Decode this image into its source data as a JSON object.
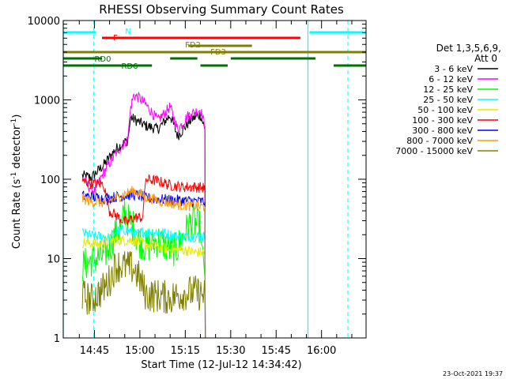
{
  "chart_data": {
    "type": "line",
    "title": "RHESSI Observing Summary Count Rates",
    "xlabel": "Start Time (12-Jul-12 14:34:42)",
    "ylabel": "Count Rate (s⁻¹ detector⁻¹)",
    "ylabel_parts": {
      "main": "Count Rate (s",
      "sup1": "-1",
      "mid": " detector",
      "sup2": "-1",
      "end": ")"
    },
    "y_scale": "log",
    "ylim": [
      1,
      10000
    ],
    "y_ticks": [
      "1",
      "10",
      "100",
      "1000",
      "10000"
    ],
    "x_range_minutes": [
      14.0,
      66.0
    ],
    "x_ticks": [
      {
        "label": "14:45",
        "min": 45
      },
      {
        "label": "15:00",
        "min": 60
      },
      {
        "label": "15:15",
        "min": 75
      },
      {
        "label": "15:30",
        "min": 90
      },
      {
        "label": "15:45",
        "min": 105
      },
      {
        "label": "16:00",
        "min": 120
      }
    ],
    "x_tick_minutes": [
      40,
      45,
      50,
      55,
      60,
      65,
      70,
      75,
      80,
      85,
      90,
      95,
      100,
      105,
      110,
      115,
      120,
      125,
      130
    ],
    "axis_start_min": 34.7,
    "axis_end_min": 134.7,
    "legend": {
      "title": "Det 1,3,5,6,9,",
      "subtitle": "Att 0",
      "placement": "right"
    },
    "series": [
      {
        "name": "3 - 6 keV",
        "color": "#000000",
        "points": [
          [
            41,
            111
          ],
          [
            44,
            105
          ],
          [
            48,
            150
          ],
          [
            52,
            240
          ],
          [
            56,
            310
          ],
          [
            57,
            600
          ],
          [
            62,
            470
          ],
          [
            66,
            430
          ],
          [
            70,
            640
          ],
          [
            72.5,
            350
          ],
          [
            77,
            570
          ],
          [
            80,
            650
          ],
          [
            81.5,
            420
          ]
        ]
      },
      {
        "name": "6 - 12 keV",
        "color": "#ff00ff",
        "points": [
          [
            41,
            105
          ],
          [
            43,
            82
          ],
          [
            45,
            70
          ],
          [
            48,
            120
          ],
          [
            52,
            210
          ],
          [
            56,
            320
          ],
          [
            57,
            820
          ],
          [
            58,
            1150
          ],
          [
            60,
            1050
          ],
          [
            62,
            870
          ],
          [
            66,
            550
          ],
          [
            70,
            820
          ],
          [
            72.5,
            420
          ],
          [
            76,
            640
          ],
          [
            80,
            760
          ],
          [
            81.5,
            470
          ]
        ]
      },
      {
        "name": "12 - 25 keV",
        "color": "#00ff00",
        "points": [
          [
            41,
            8.0
          ],
          [
            44,
            9.5
          ],
          [
            48,
            11
          ],
          [
            50,
            14
          ],
          [
            52,
            21
          ],
          [
            54,
            25
          ],
          [
            55,
            42
          ],
          [
            56,
            31
          ],
          [
            58,
            25
          ],
          [
            59,
            18
          ],
          [
            62,
            14
          ],
          [
            66,
            17
          ],
          [
            70,
            13
          ],
          [
            72,
            13
          ],
          [
            74,
            18
          ],
          [
            77,
            30
          ],
          [
            80,
            25
          ],
          [
            81.5,
            5.5
          ]
        ]
      },
      {
        "name": "25 - 50 keV",
        "color": "#00ffff",
        "points": [
          [
            41,
            21
          ],
          [
            45,
            19
          ],
          [
            48,
            19
          ],
          [
            50,
            18
          ],
          [
            52,
            22
          ],
          [
            55,
            23
          ],
          [
            57,
            22
          ],
          [
            59,
            20
          ],
          [
            61,
            22
          ],
          [
            62,
            21
          ],
          [
            64,
            22
          ],
          [
            68,
            21
          ],
          [
            70,
            20
          ],
          [
            72,
            19
          ],
          [
            76,
            19
          ],
          [
            80,
            19
          ],
          [
            81.5,
            19
          ]
        ]
      },
      {
        "name": "50 - 100 keV",
        "color": "#e8e800",
        "points": [
          [
            41,
            16
          ],
          [
            48,
            15
          ],
          [
            50,
            17
          ],
          [
            55,
            17
          ],
          [
            58,
            17
          ],
          [
            60,
            16
          ],
          [
            62,
            15
          ],
          [
            66,
            14
          ],
          [
            70,
            13
          ],
          [
            74,
            13
          ],
          [
            78,
            12
          ],
          [
            81.5,
            12
          ]
        ]
      },
      {
        "name": "100 - 300 keV",
        "color": "#ff0000",
        "points": [
          [
            41,
            93
          ],
          [
            45,
            88
          ],
          [
            48,
            87
          ],
          [
            50,
            40
          ],
          [
            54,
            31
          ],
          [
            56,
            28
          ],
          [
            57,
            32
          ],
          [
            59,
            33
          ],
          [
            61,
            33
          ],
          [
            62,
            100
          ],
          [
            66,
            95
          ],
          [
            70,
            84
          ],
          [
            74,
            80
          ],
          [
            78,
            80
          ],
          [
            81.5,
            78
          ]
        ]
      },
      {
        "name": "300 - 800 keV",
        "color": "#0000ff",
        "points": [
          [
            41,
            62
          ],
          [
            44,
            60
          ],
          [
            48,
            57
          ],
          [
            52,
            60
          ],
          [
            55,
            62
          ],
          [
            58,
            64
          ],
          [
            60,
            62
          ],
          [
            62,
            58
          ],
          [
            66,
            56
          ],
          [
            70,
            55
          ],
          [
            74,
            54
          ],
          [
            78,
            53
          ],
          [
            81.5,
            52
          ]
        ]
      },
      {
        "name": "800 - 7000 keV",
        "color": "#ff9900",
        "points": [
          [
            41,
            57
          ],
          [
            44,
            52
          ],
          [
            48,
            51
          ],
          [
            52,
            58
          ],
          [
            55,
            65
          ],
          [
            58,
            72
          ],
          [
            60,
            66
          ],
          [
            62,
            60
          ],
          [
            66,
            54
          ],
          [
            70,
            50
          ],
          [
            74,
            47
          ],
          [
            78,
            46
          ],
          [
            81.5,
            45
          ]
        ]
      },
      {
        "name": "7000 - 15000 keV",
        "color": "#808000",
        "points": [
          [
            41,
            3.4
          ],
          [
            44,
            3.0
          ],
          [
            48,
            4.2
          ],
          [
            50,
            5.3
          ],
          [
            52,
            8.2
          ],
          [
            55,
            8.0
          ],
          [
            58,
            7.5
          ],
          [
            60,
            5.5
          ],
          [
            62,
            3.5
          ],
          [
            66,
            3.4
          ],
          [
            70,
            3.2
          ],
          [
            74,
            3.6
          ],
          [
            78,
            3.8
          ],
          [
            81.5,
            3.4
          ]
        ]
      }
    ],
    "flags": [
      {
        "label": "N",
        "color": "#00ffff",
        "segments": [
          [
            0,
            45.5
          ],
          [
            116,
            134.7
          ]
        ]
      },
      {
        "label": "F",
        "color": "#ff0000",
        "segments": [
          [
            47.5,
            113
          ]
        ]
      },
      {
        "label": "FD2",
        "color": "#808000",
        "segments": [
          [
            76,
            97
          ]
        ]
      },
      {
        "label": "FD3",
        "color": "#808000",
        "segments": [
          [
            0,
            134.7
          ]
        ]
      },
      {
        "label": "RD0",
        "color": "#007000",
        "segments": [
          [
            0,
            47.5
          ],
          [
            70,
            79
          ],
          [
            90,
            118
          ]
        ]
      },
      {
        "label": "RD6",
        "color": "#007000",
        "segments": [
          [
            0,
            64
          ],
          [
            80,
            89
          ],
          [
            124,
            134.7
          ]
        ]
      }
    ],
    "cyan_markers": {
      "solid_min": [
        34.7,
        115.5
      ],
      "dashed_min": [
        44.8,
        128.7
      ]
    },
    "grid": false
  },
  "footer": {
    "timestamp": "23-Oct-2021 19:37"
  }
}
